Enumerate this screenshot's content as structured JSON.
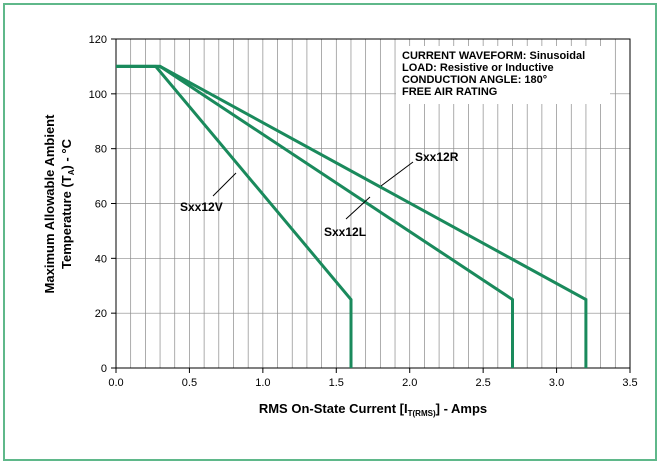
{
  "chart_data": {
    "type": "line",
    "xlabel": {
      "main": "RMS On-State Current [I",
      "sub": "T(RMS)",
      "end": "] - Amps"
    },
    "ylabel": {
      "line1": "Maximum Allowable Ambient",
      "line2_main": "Temperature (T",
      "line2_sub": "A",
      "line2_end": ") - °C"
    },
    "xlim": [
      0,
      3.5
    ],
    "ylim": [
      0,
      120
    ],
    "xticks": [
      "0.0",
      "0.5",
      "1.0",
      "1.5",
      "2.0",
      "2.5",
      "3.0",
      "3.5"
    ],
    "yticks": [
      "0",
      "20",
      "40",
      "60",
      "80",
      "100",
      "120"
    ],
    "grid": true,
    "line_color": "#1a8a5c",
    "annotation": [
      "CURRENT WAVEFORM: Sinusoidal",
      "LOAD: Resistive or Inductive",
      "CONDUCTION ANGLE: 180°",
      "FREE AIR RATING"
    ],
    "series": [
      {
        "name": "Sxx12V",
        "x": [
          0,
          0.27,
          1.6,
          1.6
        ],
        "y": [
          110,
          110,
          25,
          0
        ]
      },
      {
        "name": "Sxx12L",
        "x": [
          0,
          0.3,
          2.7,
          2.7
        ],
        "y": [
          110,
          110,
          25,
          0
        ]
      },
      {
        "name": "Sxx12R",
        "x": [
          0,
          0.3,
          3.2,
          3.2
        ],
        "y": [
          110,
          110,
          25,
          0
        ]
      }
    ]
  }
}
